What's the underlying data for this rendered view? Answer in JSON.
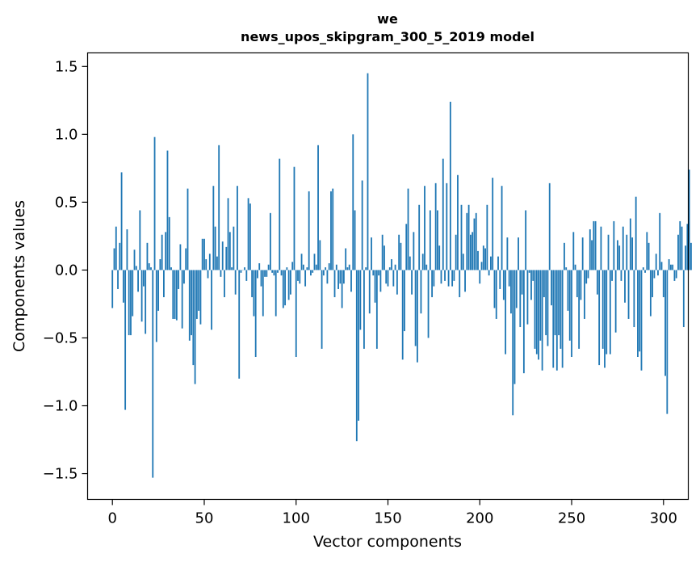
{
  "chart_data": {
    "type": "bar",
    "title_line1": "we",
    "title_line2": "news_upos_skipgram_300_5_2019 model",
    "xlabel": "Vector components",
    "ylabel": "Components values",
    "xlim": [
      -13.5,
      313.5
    ],
    "ylim": [
      -1.69,
      1.6
    ],
    "xticks": [
      0,
      50,
      100,
      150,
      200,
      250,
      300
    ],
    "xtick_labels": [
      "0",
      "50",
      "100",
      "150",
      "200",
      "250",
      "300"
    ],
    "yticks": [
      -1.5,
      -1.0,
      -0.5,
      0.0,
      0.5,
      1.0,
      1.5
    ],
    "ytick_labels": [
      "−1.5",
      "−1.0",
      "−0.5",
      "0.0",
      "0.5",
      "1.0",
      "1.5"
    ],
    "grid": false,
    "bar_color": "#1f77b4",
    "values": [
      -0.28,
      0.16,
      0.32,
      -0.14,
      0.2,
      0.72,
      -0.24,
      -1.03,
      0.3,
      -0.48,
      -0.48,
      -0.34,
      0.15,
      0.03,
      -0.16,
      0.44,
      -0.38,
      -0.12,
      -0.47,
      0.2,
      0.05,
      0.02,
      -1.53,
      0.98,
      -0.53,
      -0.3,
      0.08,
      0.26,
      -0.2,
      0.28,
      0.88,
      0.39,
      0.02,
      -0.36,
      -0.36,
      -0.37,
      -0.14,
      0.19,
      -0.43,
      -0.1,
      0.16,
      0.6,
      -0.52,
      -0.48,
      -0.7,
      -0.84,
      -0.36,
      -0.3,
      -0.4,
      0.23,
      0.23,
      0.08,
      -0.06,
      0.12,
      -0.44,
      0.62,
      0.32,
      0.1,
      0.92,
      -0.05,
      0.21,
      -0.2,
      0.17,
      0.53,
      0.28,
      0.02,
      0.32,
      -0.18,
      0.62,
      -0.8,
      -0.02,
      0.0,
      0.02,
      -0.08,
      0.53,
      0.49,
      -0.2,
      -0.34,
      -0.64,
      -0.06,
      0.05,
      -0.12,
      -0.34,
      -0.05,
      -0.05,
      0.04,
      0.42,
      -0.02,
      -0.04,
      -0.34,
      -0.02,
      0.82,
      -0.04,
      -0.28,
      -0.26,
      0.02,
      -0.22,
      -0.18,
      0.06,
      0.76,
      -0.64,
      -0.08,
      -0.1,
      0.12,
      0.04,
      -0.12,
      0.02,
      0.58,
      -0.04,
      -0.02,
      0.12,
      0.04,
      0.92,
      0.22,
      -0.58,
      -0.04,
      0.02,
      -0.1,
      0.05,
      0.58,
      0.6,
      -0.2,
      0.04,
      -0.14,
      -0.1,
      -0.28,
      -0.1,
      0.16,
      0.02,
      0.04,
      -0.16,
      1.0,
      0.44,
      -1.26,
      -1.11,
      -0.44,
      0.66,
      -0.58,
      0.02,
      1.45,
      -0.32,
      0.24,
      -0.04,
      -0.24,
      -0.58,
      -0.04,
      -0.16,
      0.26,
      0.18,
      -0.1,
      -0.12,
      0.02,
      0.08,
      -0.12,
      0.04,
      -0.18,
      0.26,
      0.2,
      -0.66,
      -0.45,
      0.34,
      0.6,
      0.1,
      -0.18,
      0.28,
      -0.56,
      -0.68,
      0.48,
      -0.32,
      0.12,
      0.62,
      0.04,
      -0.5,
      0.44,
      -0.2,
      -0.12,
      0.64,
      0.44,
      0.18,
      -0.1,
      0.82,
      -0.08,
      0.64,
      -0.12,
      1.24,
      -0.12,
      -0.08,
      0.26,
      0.7,
      -0.2,
      0.48,
      0.12,
      -0.16,
      0.42,
      0.48,
      0.26,
      0.28,
      0.38,
      0.42,
      0.14,
      -0.1,
      0.06,
      0.18,
      0.16,
      0.48,
      -0.04,
      0.1,
      0.68,
      -0.28,
      -0.36,
      0.1,
      -0.14,
      0.62,
      -0.22,
      -0.62,
      0.24,
      -0.12,
      -0.32,
      -1.07,
      -0.84,
      -0.28,
      0.24,
      -0.42,
      -0.18,
      -0.76,
      0.44,
      -0.4,
      -0.02,
      -0.22,
      -0.08,
      -0.58,
      -0.62,
      -0.66,
      -0.52,
      -0.74,
      -0.2,
      -0.48,
      -0.56,
      0.64,
      -0.26,
      -0.72,
      -0.48,
      -0.74,
      -0.48,
      -0.58,
      -0.72,
      0.2,
      0.02,
      -0.3,
      -0.52,
      -0.64,
      0.28,
      0.04,
      -0.2,
      -0.58,
      -0.22,
      0.24,
      -0.36,
      -0.1,
      -0.06,
      0.3,
      0.22,
      0.36,
      0.36,
      -0.18,
      -0.7,
      0.32,
      -0.58,
      -0.72,
      -0.62,
      0.26,
      -0.62,
      -0.08,
      0.36,
      -0.46,
      0.22,
      0.18,
      -0.08,
      0.32,
      -0.24,
      0.26,
      -0.36,
      0.38,
      0.24,
      -0.42,
      0.54,
      -0.64,
      -0.6,
      -0.74,
      0.02,
      -0.02,
      0.28,
      0.2,
      -0.34,
      -0.2,
      -0.06,
      0.12,
      -0.04,
      0.42,
      0.06,
      -0.2,
      -0.78,
      -1.06,
      0.08,
      0.04,
      0.04,
      -0.08,
      -0.06,
      0.26,
      0.36,
      0.32,
      -0.42,
      0.18,
      0.34,
      0.74,
      0.2
    ]
  }
}
